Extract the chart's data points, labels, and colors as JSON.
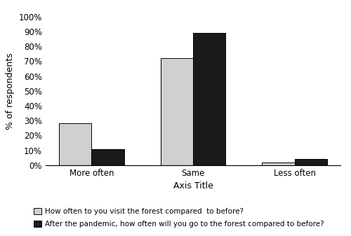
{
  "categories": [
    "More often",
    "Same",
    "Less often"
  ],
  "series1_label": "How often to you visit the forest compared  to before?",
  "series2_label": "After the pandemic, how often will you go to the forest compared to before?",
  "series1_values": [
    0.28,
    0.72,
    0.02
  ],
  "series2_values": [
    0.11,
    0.89,
    0.04
  ],
  "series1_color": "#d0d0d0",
  "series2_color": "#1a1a1a",
  "bar_edge_color": "#000000",
  "ylabel": "% of respondents",
  "xlabel": "Axis Title",
  "ylim": [
    0,
    1.0
  ],
  "yticks": [
    0.0,
    0.1,
    0.2,
    0.3,
    0.4,
    0.5,
    0.6,
    0.7,
    0.8,
    0.9,
    1.0
  ],
  "ytick_labels": [
    "0%",
    "10%",
    "20%",
    "30%",
    "40%",
    "50%",
    "60%",
    "70%",
    "80%",
    "90%",
    "100%"
  ],
  "bar_width": 0.32,
  "figsize": [
    5.0,
    3.37
  ],
  "dpi": 100,
  "legend_fontsize": 7.5,
  "axis_fontsize": 9,
  "tick_fontsize": 8.5
}
